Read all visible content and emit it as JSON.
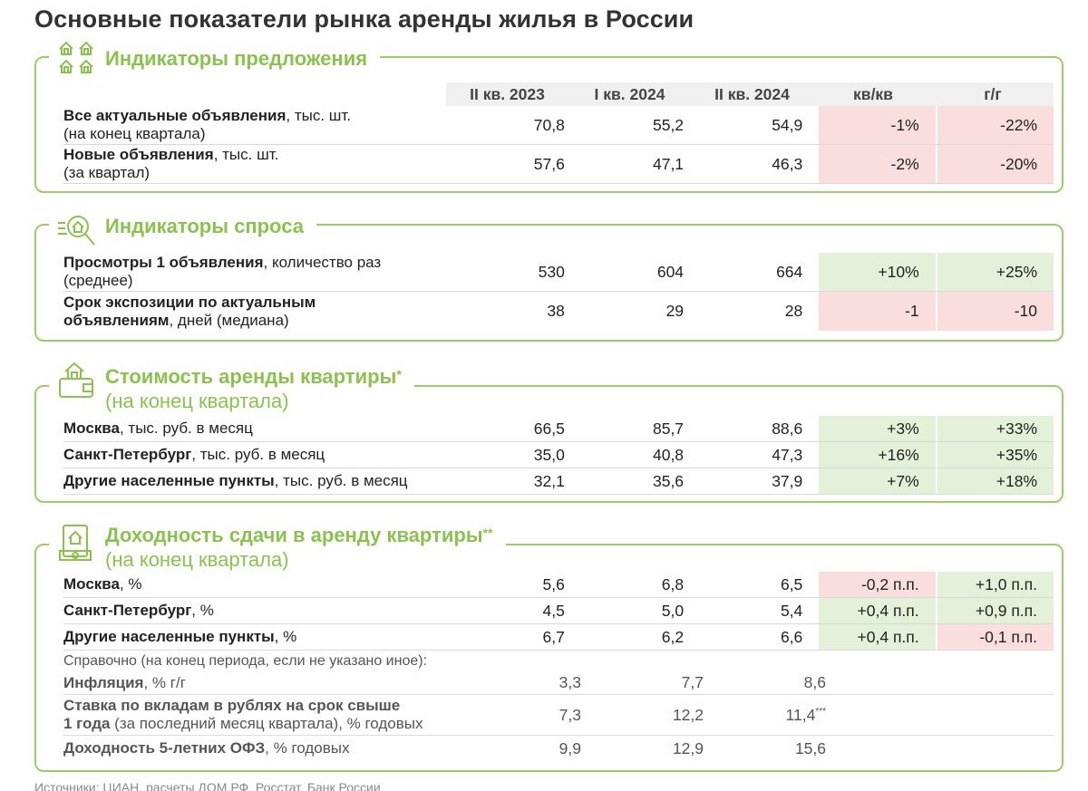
{
  "title": "Основные показатели рынка аренды жилья в России",
  "columns": [
    "II кв. 2023",
    "I кв. 2024",
    "II кв. 2024",
    "кв/кв",
    "г/г"
  ],
  "supply": {
    "title": "Индикаторы предложения",
    "rows": [
      {
        "bold": "Все актуальные объявления",
        "rest": ", тыс. шт.",
        "line2": "(на конец квартала)",
        "v1": "70,8",
        "v2": "55,2",
        "v3": "54,9",
        "qq": "-1%",
        "yy": "-22%"
      },
      {
        "bold": "Новые объявления",
        "rest": ", тыс. шт.",
        "line2": "(за квартал)",
        "v1": "57,6",
        "v2": "47,1",
        "v3": "46,3",
        "qq": "-2%",
        "yy": "-20%"
      }
    ]
  },
  "demand": {
    "title": "Индикаторы спроса",
    "rows": [
      {
        "bold": "Просмотры 1 объявления",
        "rest": ", количество раз",
        "line2": "(среднее)",
        "v1": "530",
        "v2": "604",
        "v3": "664",
        "qq": "+10%",
        "yy": "+25%"
      },
      {
        "bold": "Срок экспозиции по актуальным",
        "bold2": "объявлениям",
        "rest2": ", дней (медиана)",
        "v1": "38",
        "v2": "29",
        "v3": "28",
        "qq": "-1",
        "yy": "-10"
      }
    ]
  },
  "rent": {
    "title": "Стоимость аренды квартиры",
    "mark": "*",
    "subtitle": "(на конец квартала)",
    "rows": [
      {
        "bold": "Москва",
        "rest": ", тыс. руб. в месяц",
        "v1": "66,5",
        "v2": "85,7",
        "v3": "88,6",
        "qq": "+3%",
        "yy": "+33%"
      },
      {
        "bold": "Санкт-Петербург",
        "rest": ", тыс. руб. в месяц",
        "v1": "35,0",
        "v2": "40,8",
        "v3": "47,3",
        "qq": "+16%",
        "yy": "+35%"
      },
      {
        "bold": "Другие населенные пункты",
        "rest": ", тыс. руб. в месяц",
        "v1": "32,1",
        "v2": "35,6",
        "v3": "37,9",
        "qq": "+7%",
        "yy": "+18%"
      }
    ]
  },
  "yield": {
    "title": "Доходность сдачи в аренду квартиры",
    "mark": "**",
    "subtitle": "(на конец квартала)",
    "rows": [
      {
        "bold": "Москва",
        "rest": ", %",
        "v1": "5,6",
        "v2": "6,8",
        "v3": "6,5",
        "qq": "-0,2 п.п.",
        "yy": "+1,0 п.п."
      },
      {
        "bold": "Санкт-Петербург",
        "rest": ", %",
        "v1": "4,5",
        "v2": "5,0",
        "v3": "5,4",
        "qq": "+0,4 п.п.",
        "yy": "+0,9 п.п."
      },
      {
        "bold": "Другие населенные пункты",
        "rest": ", %",
        "v1": "6,7",
        "v2": "6,2",
        "v3": "6,6",
        "qq": "+0,4 п.п.",
        "yy": "-0,1 п.п."
      }
    ],
    "note": "Справочно (на конец периода, если не указано иное):",
    "ref": [
      {
        "bold": "Инфляция",
        "rest": ", % г/г",
        "v1": "3,3",
        "v2": "7,7",
        "v3": "8,6"
      },
      {
        "bold": "Ставка по вкладам в рублях на срок свыше",
        "bold2": "1 года",
        "rest2": " (за последний месяц квартала), % годовых",
        "v1": "7,3",
        "v2": "12,2",
        "v3": "11,4",
        "v3mark": "***"
      },
      {
        "bold": "Доходность 5-летних ОФЗ",
        "rest": ", % годовых",
        "v1": "9,9",
        "v2": "12,9",
        "v3": "15,6"
      }
    ]
  },
  "source": "Источники: ЦИАН, расчеты ДОМ.РФ, Росстат, Банк России",
  "colors": {
    "green_border": "#9ccd6a",
    "green_title": "#8cc152",
    "neg_bg": "#fadddd",
    "pos_bg": "#e4f0d8"
  }
}
